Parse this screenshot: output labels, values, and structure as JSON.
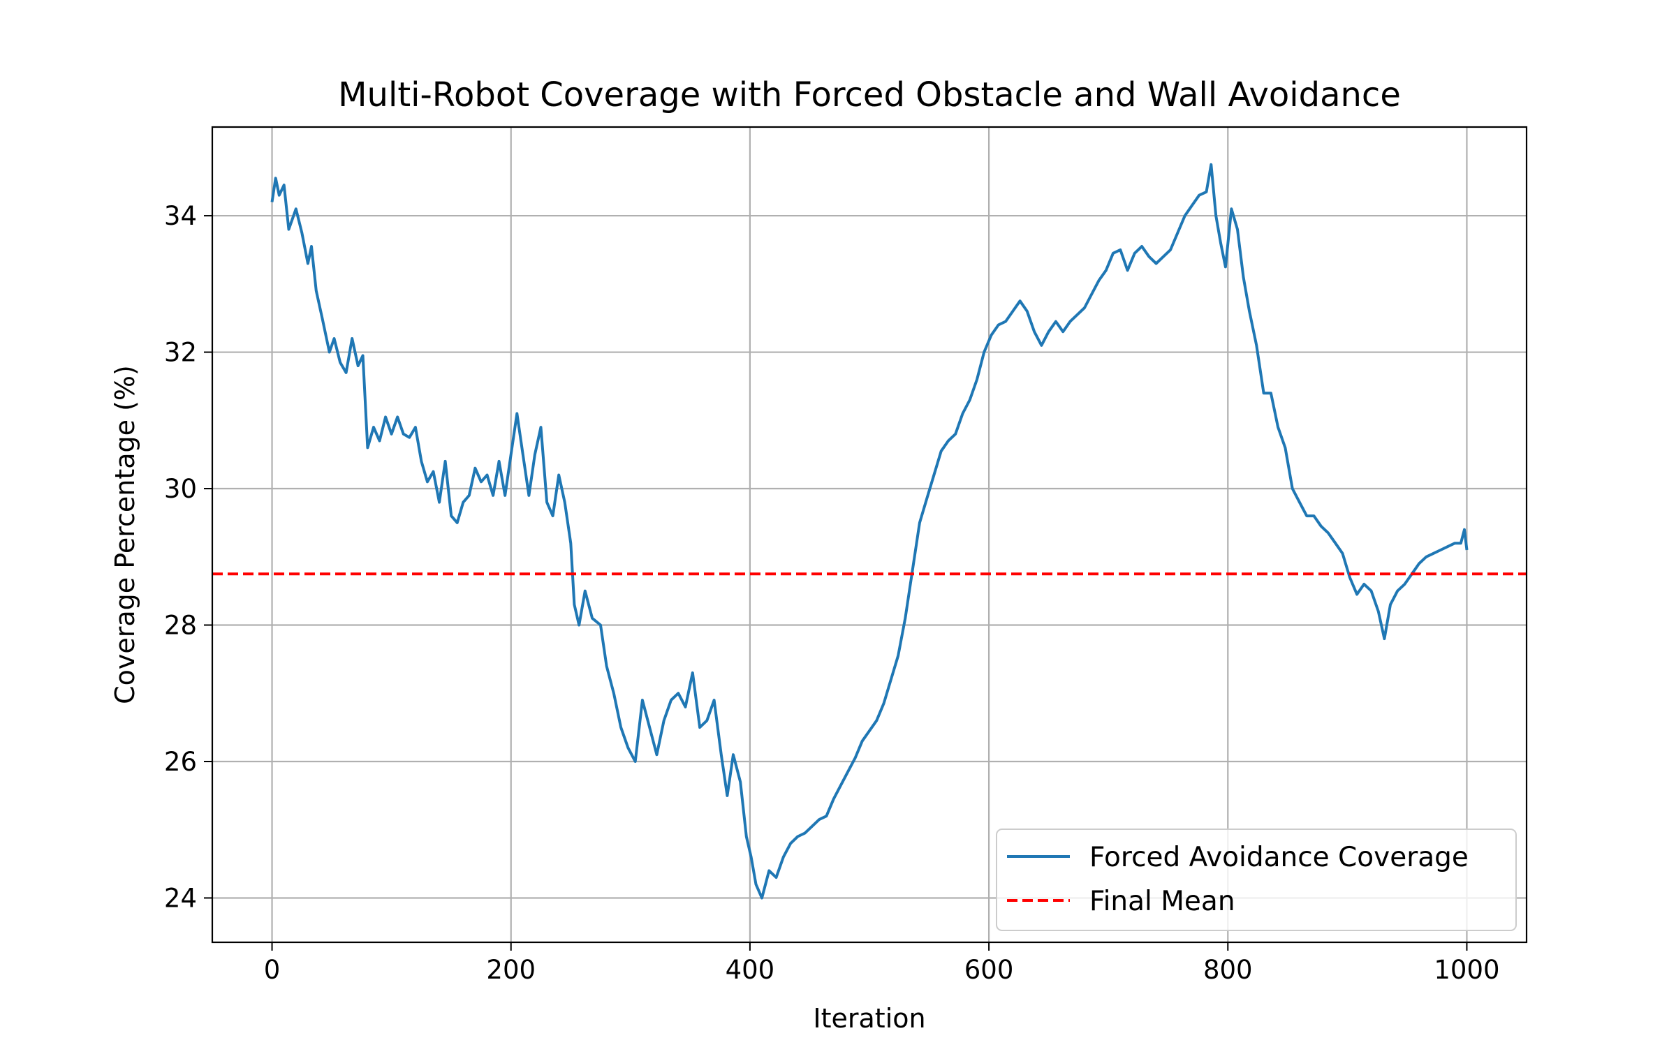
{
  "chart_data": {
    "type": "line",
    "title": "Multi-Robot Coverage with Forced Obstacle and Wall Avoidance",
    "xlabel": "Iteration",
    "ylabel": "Coverage Percentage (%)",
    "xlim": [
      -50,
      1050
    ],
    "ylim": [
      23.35,
      35.3
    ],
    "xticks": [
      0,
      200,
      400,
      600,
      800,
      1000
    ],
    "yticks": [
      24,
      26,
      28,
      30,
      32,
      34
    ],
    "grid": true,
    "legend_position": "lower right",
    "series": [
      {
        "name": "Forced Avoidance Coverage",
        "color": "#1f77b4",
        "style": "solid",
        "points": [
          [
            0,
            34.2
          ],
          [
            3,
            34.55
          ],
          [
            6,
            34.3
          ],
          [
            10,
            34.45
          ],
          [
            14,
            33.8
          ],
          [
            20,
            34.1
          ],
          [
            25,
            33.75
          ],
          [
            30,
            33.3
          ],
          [
            33,
            33.55
          ],
          [
            37,
            32.9
          ],
          [
            42,
            32.5
          ],
          [
            48,
            32.0
          ],
          [
            52,
            32.2
          ],
          [
            57,
            31.85
          ],
          [
            62,
            31.7
          ],
          [
            67,
            32.2
          ],
          [
            72,
            31.8
          ],
          [
            76,
            31.95
          ],
          [
            80,
            30.6
          ],
          [
            85,
            30.9
          ],
          [
            90,
            30.7
          ],
          [
            95,
            31.05
          ],
          [
            100,
            30.8
          ],
          [
            105,
            31.05
          ],
          [
            110,
            30.8
          ],
          [
            115,
            30.75
          ],
          [
            120,
            30.9
          ],
          [
            125,
            30.4
          ],
          [
            130,
            30.1
          ],
          [
            135,
            30.25
          ],
          [
            140,
            29.8
          ],
          [
            145,
            30.4
          ],
          [
            150,
            29.6
          ],
          [
            155,
            29.5
          ],
          [
            160,
            29.8
          ],
          [
            165,
            29.9
          ],
          [
            170,
            30.3
          ],
          [
            175,
            30.1
          ],
          [
            180,
            30.2
          ],
          [
            185,
            29.9
          ],
          [
            190,
            30.4
          ],
          [
            195,
            29.9
          ],
          [
            200,
            30.5
          ],
          [
            205,
            31.1
          ],
          [
            210,
            30.5
          ],
          [
            215,
            29.9
          ],
          [
            220,
            30.5
          ],
          [
            225,
            30.9
          ],
          [
            230,
            29.8
          ],
          [
            235,
            29.6
          ],
          [
            240,
            30.2
          ],
          [
            245,
            29.8
          ],
          [
            250,
            29.2
          ],
          [
            253,
            28.3
          ],
          [
            257,
            28.0
          ],
          [
            262,
            28.5
          ],
          [
            268,
            28.1
          ],
          [
            275,
            28.0
          ],
          [
            280,
            27.4
          ],
          [
            286,
            27.0
          ],
          [
            292,
            26.5
          ],
          [
            298,
            26.2
          ],
          [
            304,
            26.0
          ],
          [
            310,
            26.9
          ],
          [
            316,
            26.5
          ],
          [
            322,
            26.1
          ],
          [
            328,
            26.6
          ],
          [
            334,
            26.9
          ],
          [
            340,
            27.0
          ],
          [
            346,
            26.8
          ],
          [
            352,
            27.3
          ],
          [
            358,
            26.5
          ],
          [
            364,
            26.6
          ],
          [
            370,
            26.9
          ],
          [
            376,
            26.1
          ],
          [
            381,
            25.5
          ],
          [
            386,
            26.1
          ],
          [
            392,
            25.7
          ],
          [
            397,
            24.9
          ],
          [
            401,
            24.6
          ],
          [
            405,
            24.2
          ],
          [
            410,
            24.0
          ],
          [
            416,
            24.4
          ],
          [
            422,
            24.3
          ],
          [
            428,
            24.6
          ],
          [
            434,
            24.8
          ],
          [
            440,
            24.9
          ],
          [
            446,
            24.95
          ],
          [
            452,
            25.05
          ],
          [
            458,
            25.15
          ],
          [
            464,
            25.2
          ],
          [
            470,
            25.45
          ],
          [
            476,
            25.65
          ],
          [
            482,
            25.85
          ],
          [
            488,
            26.05
          ],
          [
            494,
            26.3
          ],
          [
            500,
            26.45
          ],
          [
            506,
            26.6
          ],
          [
            512,
            26.85
          ],
          [
            518,
            27.2
          ],
          [
            524,
            27.55
          ],
          [
            530,
            28.1
          ],
          [
            536,
            28.8
          ],
          [
            542,
            29.5
          ],
          [
            548,
            29.85
          ],
          [
            554,
            30.2
          ],
          [
            560,
            30.55
          ],
          [
            566,
            30.7
          ],
          [
            572,
            30.8
          ],
          [
            578,
            31.1
          ],
          [
            584,
            31.3
          ],
          [
            590,
            31.6
          ],
          [
            596,
            32.0
          ],
          [
            602,
            32.25
          ],
          [
            608,
            32.4
          ],
          [
            614,
            32.45
          ],
          [
            620,
            32.6
          ],
          [
            626,
            32.75
          ],
          [
            632,
            32.6
          ],
          [
            638,
            32.3
          ],
          [
            644,
            32.1
          ],
          [
            650,
            32.3
          ],
          [
            656,
            32.45
          ],
          [
            662,
            32.3
          ],
          [
            668,
            32.45
          ],
          [
            674,
            32.55
          ],
          [
            680,
            32.65
          ],
          [
            686,
            32.85
          ],
          [
            692,
            33.05
          ],
          [
            698,
            33.2
          ],
          [
            704,
            33.45
          ],
          [
            710,
            33.5
          ],
          [
            716,
            33.2
          ],
          [
            722,
            33.45
          ],
          [
            728,
            33.55
          ],
          [
            734,
            33.4
          ],
          [
            740,
            33.3
          ],
          [
            746,
            33.4
          ],
          [
            752,
            33.5
          ],
          [
            758,
            33.75
          ],
          [
            764,
            34.0
          ],
          [
            770,
            34.15
          ],
          [
            776,
            34.3
          ],
          [
            782,
            34.35
          ],
          [
            786,
            34.75
          ],
          [
            790,
            34.0
          ],
          [
            794,
            33.6
          ],
          [
            798,
            33.25
          ],
          [
            803,
            34.1
          ],
          [
            808,
            33.8
          ],
          [
            813,
            33.1
          ],
          [
            818,
            32.6
          ],
          [
            824,
            32.1
          ],
          [
            830,
            31.4
          ],
          [
            836,
            31.4
          ],
          [
            842,
            30.9
          ],
          [
            848,
            30.6
          ],
          [
            854,
            30.0
          ],
          [
            860,
            29.8
          ],
          [
            866,
            29.6
          ],
          [
            872,
            29.6
          ],
          [
            878,
            29.45
          ],
          [
            884,
            29.35
          ],
          [
            890,
            29.2
          ],
          [
            896,
            29.05
          ],
          [
            902,
            28.7
          ],
          [
            908,
            28.45
          ],
          [
            914,
            28.6
          ],
          [
            920,
            28.5
          ],
          [
            926,
            28.2
          ],
          [
            931,
            27.8
          ],
          [
            936,
            28.3
          ],
          [
            942,
            28.5
          ],
          [
            948,
            28.6
          ],
          [
            954,
            28.75
          ],
          [
            960,
            28.9
          ],
          [
            966,
            29.0
          ],
          [
            972,
            29.05
          ],
          [
            978,
            29.1
          ],
          [
            984,
            29.15
          ],
          [
            990,
            29.2
          ],
          [
            995,
            29.2
          ],
          [
            998,
            29.4
          ],
          [
            1000,
            29.1
          ]
        ]
      },
      {
        "name": "Final Mean",
        "color": "#ff0000",
        "style": "dashed",
        "y": 28.75
      }
    ]
  }
}
